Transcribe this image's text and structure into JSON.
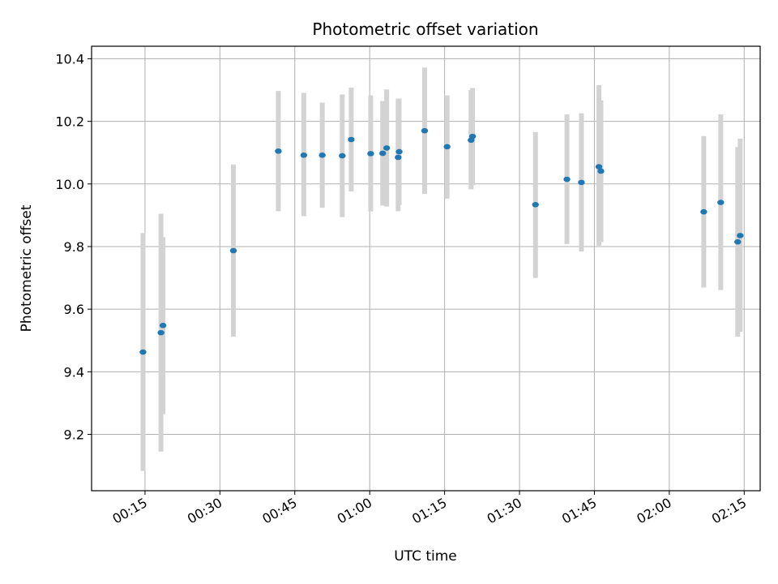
{
  "chart_data": {
    "type": "scatter",
    "title": "Photometric offset variation",
    "xlabel": "UTC time",
    "ylabel": "Photometric offset",
    "x_unit": "minutes",
    "xlim": [
      4.3,
      138.2
    ],
    "ylim": [
      9.02,
      10.44
    ],
    "grid": true,
    "x_ticks": [
      {
        "value": 15,
        "label": "00:15"
      },
      {
        "value": 30,
        "label": "00:30"
      },
      {
        "value": 45,
        "label": "00:45"
      },
      {
        "value": 60,
        "label": "01:00"
      },
      {
        "value": 75,
        "label": "01:15"
      },
      {
        "value": 90,
        "label": "01:30"
      },
      {
        "value": 105,
        "label": "01:45"
      },
      {
        "value": 120,
        "label": "02:00"
      },
      {
        "value": 135,
        "label": "02:15"
      }
    ],
    "y_ticks": [
      {
        "value": 9.2,
        "label": "9.2"
      },
      {
        "value": 9.4,
        "label": "9.4"
      },
      {
        "value": 9.6,
        "label": "9.6"
      },
      {
        "value": 9.8,
        "label": "9.8"
      },
      {
        "value": 10.0,
        "label": "10.0"
      },
      {
        "value": 10.2,
        "label": "10.2"
      },
      {
        "value": 10.4,
        "label": "10.4"
      }
    ],
    "colors": {
      "point": "#1f77b4",
      "errorbar": "#d3d3d3",
      "grid": "#b0b0b0",
      "axes": "#000000"
    },
    "points": [
      {
        "x": 14.6,
        "y": 9.463,
        "lo": 9.083,
        "hi": 9.843
      },
      {
        "x": 18.2,
        "y": 9.525,
        "lo": 9.145,
        "hi": 9.905
      },
      {
        "x": 18.6,
        "y": 9.548,
        "lo": 9.265,
        "hi": 9.83
      },
      {
        "x": 32.7,
        "y": 9.787,
        "lo": 9.512,
        "hi": 10.062
      },
      {
        "x": 41.7,
        "y": 10.105,
        "lo": 9.913,
        "hi": 10.297
      },
      {
        "x": 46.8,
        "y": 10.092,
        "lo": 9.897,
        "hi": 10.291
      },
      {
        "x": 50.5,
        "y": 10.092,
        "lo": 9.924,
        "hi": 10.26
      },
      {
        "x": 54.5,
        "y": 10.09,
        "lo": 9.894,
        "hi": 10.286
      },
      {
        "x": 56.3,
        "y": 10.142,
        "lo": 9.976,
        "hi": 10.308
      },
      {
        "x": 60.2,
        "y": 10.097,
        "lo": 9.912,
        "hi": 10.283
      },
      {
        "x": 62.6,
        "y": 10.098,
        "lo": 9.931,
        "hi": 10.265
      },
      {
        "x": 63.4,
        "y": 10.115,
        "lo": 9.928,
        "hi": 10.302
      },
      {
        "x": 65.7,
        "y": 10.085,
        "lo": 9.913,
        "hi": 10.272
      },
      {
        "x": 65.9,
        "y": 10.103,
        "lo": 9.933,
        "hi": 10.273
      },
      {
        "x": 71.0,
        "y": 10.17,
        "lo": 9.968,
        "hi": 10.372
      },
      {
        "x": 75.5,
        "y": 10.119,
        "lo": 9.953,
        "hi": 10.283
      },
      {
        "x": 80.3,
        "y": 10.14,
        "lo": 9.983,
        "hi": 10.3
      },
      {
        "x": 80.6,
        "y": 10.152,
        "lo": 9.996,
        "hi": 10.307
      },
      {
        "x": 93.2,
        "y": 9.934,
        "lo": 9.7,
        "hi": 10.166
      },
      {
        "x": 99.5,
        "y": 10.015,
        "lo": 9.808,
        "hi": 10.222
      },
      {
        "x": 102.4,
        "y": 10.005,
        "lo": 9.784,
        "hi": 10.226
      },
      {
        "x": 105.9,
        "y": 10.055,
        "lo": 9.803,
        "hi": 10.316
      },
      {
        "x": 106.3,
        "y": 10.041,
        "lo": 9.815,
        "hi": 10.267
      },
      {
        "x": 126.9,
        "y": 9.911,
        "lo": 9.669,
        "hi": 10.153
      },
      {
        "x": 130.3,
        "y": 9.941,
        "lo": 9.661,
        "hi": 10.222
      },
      {
        "x": 133.7,
        "y": 9.815,
        "lo": 9.512,
        "hi": 10.118
      },
      {
        "x": 134.2,
        "y": 9.835,
        "lo": 9.528,
        "hi": 10.145
      }
    ]
  }
}
